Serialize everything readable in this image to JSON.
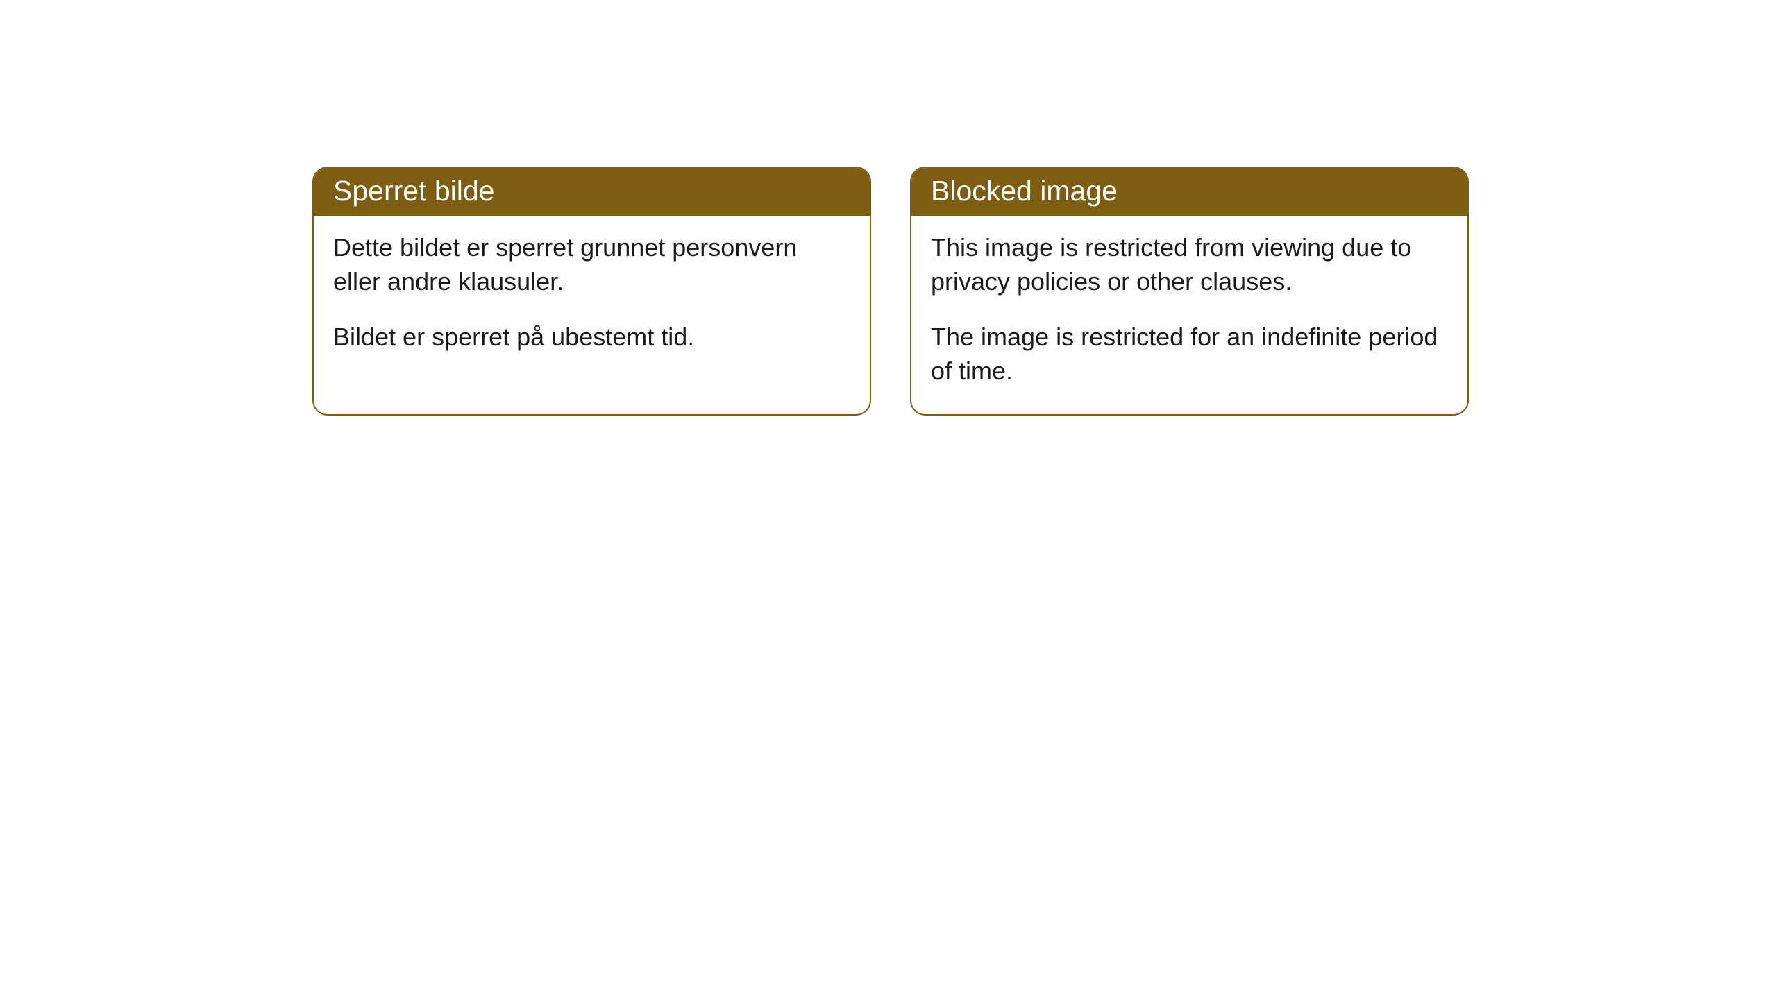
{
  "cards": [
    {
      "title": "Sperret bilde",
      "paragraph1": "Dette bildet er sperret grunnet personvern eller andre klausuler.",
      "paragraph2": "Bildet er sperret på ubestemt tid."
    },
    {
      "title": "Blocked image",
      "paragraph1": "This image is restricted from viewing due to privacy policies or other clauses.",
      "paragraph2": "The image is restricted for an indefinite period of time."
    }
  ],
  "styling": {
    "header_background_color": "#7c5d11",
    "header_text_color": "#ffffff",
    "border_color": "#7c5d11",
    "body_text_color": "#1a1a1a",
    "background_color": "#ffffff",
    "border_radius": "22px",
    "header_fontsize": 41,
    "body_fontsize": 36
  }
}
